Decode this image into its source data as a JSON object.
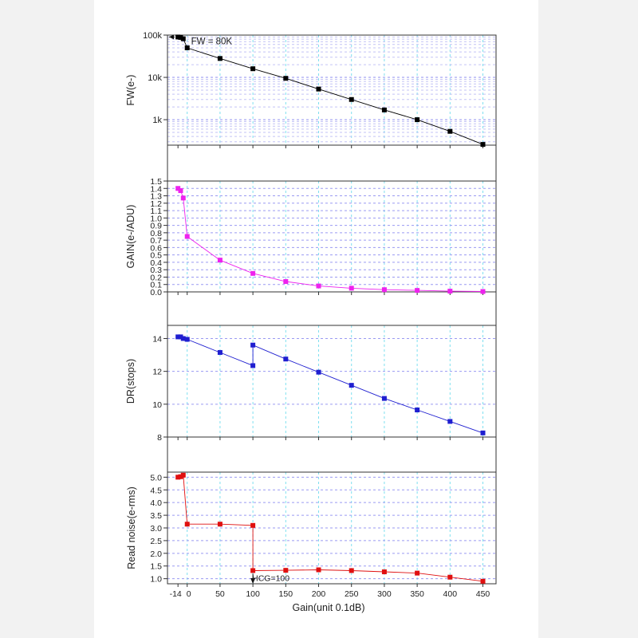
{
  "colors": {
    "fw": "#000000",
    "gain": "#ee22ee",
    "dr": "#1f1fd0",
    "rn": "#e01010"
  },
  "chart_data": [
    {
      "type": "line",
      "ylabel": "FW(e-)",
      "yscale": "log",
      "ylim": [
        250,
        100000
      ],
      "yticks": [
        1000,
        10000,
        100000
      ],
      "yticklabels": [
        "1k",
        "10k",
        "100k"
      ],
      "annotation": "FW = 80K",
      "series": [
        {
          "x": [
            -14,
            -10,
            -6,
            0,
            50,
            100,
            150,
            200,
            250,
            300,
            350,
            400,
            450
          ],
          "values": [
            90000,
            88000,
            82000,
            50000,
            28000,
            16000,
            9500,
            5300,
            3000,
            1700,
            1000,
            530,
            260
          ]
        }
      ]
    },
    {
      "type": "line",
      "ylabel": "GAIN(e-/ADU)",
      "ylim": [
        0,
        1.5
      ],
      "yticks": [
        0,
        0.1,
        0.2,
        0.3,
        0.4,
        0.5,
        0.6,
        0.7,
        0.8,
        0.9,
        1.0,
        1.1,
        1.2,
        1.3,
        1.4,
        1.5
      ],
      "yticklabels": [
        "0.0",
        "0.1",
        "0.2",
        "0.3",
        "0.4",
        "0.5",
        "0.6",
        "0.7",
        "0.8",
        "0.9",
        "1.0",
        "1.1",
        "1.2",
        "1.3",
        "1.4",
        "1.5"
      ],
      "series": [
        {
          "x": [
            -14,
            -10,
            -6,
            0,
            50,
            100,
            150,
            200,
            250,
            300,
            350,
            400,
            450
          ],
          "values": [
            1.4,
            1.37,
            1.27,
            0.75,
            0.43,
            0.25,
            0.14,
            0.08,
            0.05,
            0.03,
            0.02,
            0.01,
            0.005
          ]
        }
      ]
    },
    {
      "type": "line",
      "ylabel": "DR(stops)",
      "ylim": [
        8,
        14.8
      ],
      "yticks": [
        8,
        10,
        12,
        14
      ],
      "yticklabels": [
        "8",
        "10",
        "12",
        "14"
      ],
      "series": [
        {
          "x": [
            -14,
            -10,
            -6,
            0,
            50,
            100,
            100,
            150,
            200,
            250,
            300,
            350,
            400,
            450
          ],
          "values": [
            14.1,
            14.1,
            14.0,
            13.95,
            13.15,
            12.35,
            13.6,
            12.75,
            11.95,
            11.15,
            10.35,
            9.65,
            8.95,
            8.25
          ]
        }
      ]
    },
    {
      "type": "line",
      "ylabel": "Read noise(e-rms)",
      "ylim": [
        0.8,
        5.2
      ],
      "yticks": [
        1.0,
        1.5,
        2.0,
        2.5,
        3.0,
        3.5,
        4.0,
        4.5,
        5.0
      ],
      "yticklabels": [
        "1.0",
        "1.5",
        "2.0",
        "2.5",
        "3.0",
        "3.5",
        "4.0",
        "4.5",
        "5.0"
      ],
      "annotation": "HCG=100",
      "series": [
        {
          "x": [
            -14,
            -10,
            -6,
            0,
            50,
            100,
            100,
            150,
            200,
            250,
            300,
            350,
            400,
            450
          ],
          "values": [
            5.0,
            5.02,
            5.08,
            3.15,
            3.15,
            3.1,
            1.32,
            1.33,
            1.35,
            1.32,
            1.27,
            1.22,
            1.06,
            0.9
          ]
        }
      ]
    }
  ],
  "xaxis": {
    "xlabel": "Gain(unit 0.1dB)",
    "xlim": [
      -30,
      470
    ],
    "xticks": [
      -14,
      0,
      50,
      100,
      150,
      200,
      250,
      300,
      350,
      400,
      450
    ],
    "xticklabels": [
      "-14",
      "0",
      "50",
      "100",
      "150",
      "200",
      "250",
      "300",
      "350",
      "400",
      "450"
    ],
    "grid": true
  }
}
